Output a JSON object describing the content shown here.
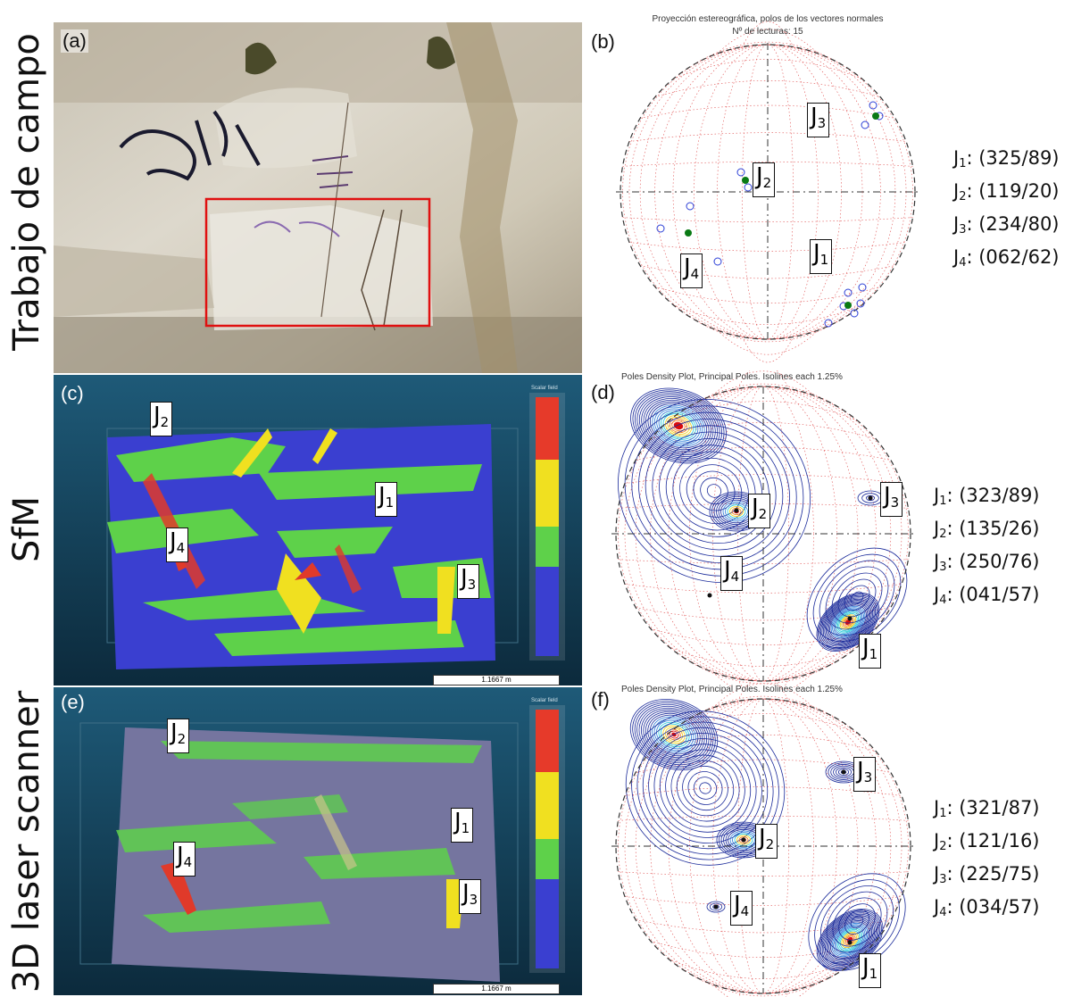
{
  "rows": [
    {
      "id": "field",
      "label": "Trabajo de campo"
    },
    {
      "id": "sfm",
      "label": "SfM"
    },
    {
      "id": "laser",
      "label": "3D laser scanner"
    }
  ],
  "panels": {
    "a": {
      "label": "(a)"
    },
    "b": {
      "label": "(b)",
      "title": "Proyección estereográfica, polos de los vectores normales",
      "subtitle": "Nº de lecturas: 15",
      "joints": [
        {
          "name": "J",
          "sub": "1"
        },
        {
          "name": "J",
          "sub": "2"
        },
        {
          "name": "J",
          "sub": "3"
        },
        {
          "name": "J",
          "sub": "4"
        }
      ]
    },
    "c": {
      "label": "(c)",
      "joints": [
        {
          "name": "J",
          "sub": "1"
        },
        {
          "name": "J",
          "sub": "2"
        },
        {
          "name": "J",
          "sub": "3"
        },
        {
          "name": "J",
          "sub": "4"
        }
      ],
      "scale": "1.1667 m",
      "colorbar_title": "Scalar field"
    },
    "d": {
      "label": "(d)",
      "title": "Poles Density Plot, Principal Poles. Isolines each 1.25%",
      "joints": [
        {
          "name": "J",
          "sub": "1"
        },
        {
          "name": "J",
          "sub": "2"
        },
        {
          "name": "J",
          "sub": "3"
        },
        {
          "name": "J",
          "sub": "4"
        }
      ]
    },
    "e": {
      "label": "(e)",
      "joints": [
        {
          "name": "J",
          "sub": "1"
        },
        {
          "name": "J",
          "sub": "2"
        },
        {
          "name": "J",
          "sub": "3"
        },
        {
          "name": "J",
          "sub": "4"
        }
      ],
      "scale": "1.1667 m",
      "colorbar_title": "Scalar field"
    },
    "f": {
      "label": "(f)",
      "title": "Poles Density Plot, Principal Poles. Isolines each 1.25%",
      "joints": [
        {
          "name": "J",
          "sub": "1"
        },
        {
          "name": "J",
          "sub": "2"
        },
        {
          "name": "J",
          "sub": "3"
        },
        {
          "name": "J",
          "sub": "4"
        }
      ]
    }
  },
  "results": {
    "field": [
      {
        "name": "J",
        "sub": "1",
        "value": ": (325/89)"
      },
      {
        "name": "J",
        "sub": "2",
        "value": ": (119/20)"
      },
      {
        "name": "J",
        "sub": "3",
        "value": ": (234/80)"
      },
      {
        "name": "J",
        "sub": "4",
        "value": ": (062/62)"
      }
    ],
    "sfm": [
      {
        "name": "J",
        "sub": "1",
        "value": ": (323/89)"
      },
      {
        "name": "J",
        "sub": "2",
        "value": ": (135/26)"
      },
      {
        "name": "J",
        "sub": "3",
        "value": ": (250/76)"
      },
      {
        "name": "J",
        "sub": "4",
        "value": ": (041/57)"
      }
    ],
    "laser": [
      {
        "name": "J",
        "sub": "1",
        "value": ": (321/87)"
      },
      {
        "name": "J",
        "sub": "2",
        "value": ": (121/16)"
      },
      {
        "name": "J",
        "sub": "3",
        "value": ": (225/75)"
      },
      {
        "name": "J",
        "sub": "4",
        "value": ": (034/57)"
      }
    ]
  },
  "colors": {
    "blue_pole": "#2b3fd6",
    "green_pole": "#0a7a14",
    "grid_red": "#e05050",
    "contour": "#1a2a9a",
    "cloud_blue": "#3a3fd0",
    "cloud_green": "#5ed14a",
    "cloud_yellow": "#f0e020",
    "cloud_red": "#e03a2a"
  }
}
